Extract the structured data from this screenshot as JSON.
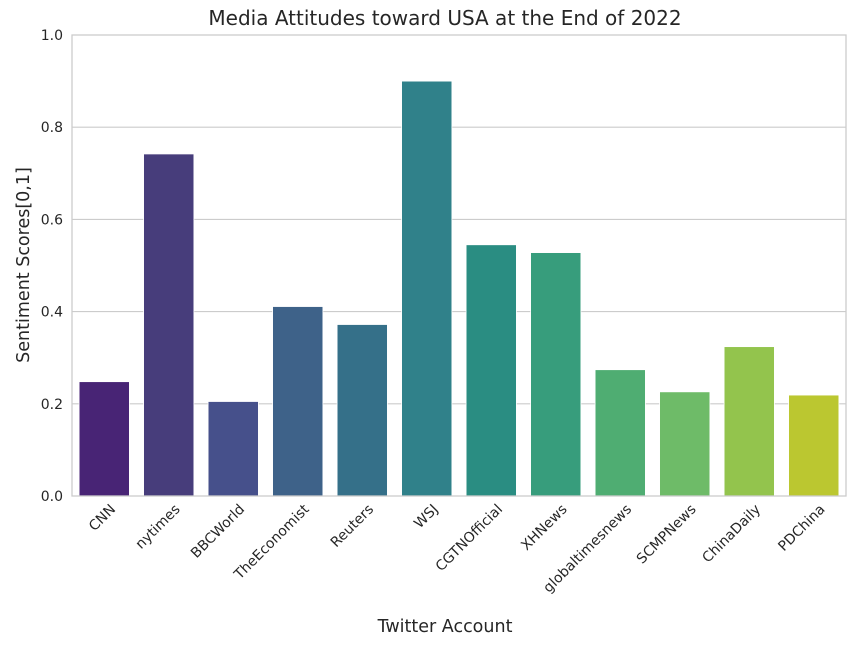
{
  "chart_data": {
    "type": "bar",
    "title": "Media Attitudes toward USA at the End of 2022",
    "xlabel": "Twitter Account",
    "ylabel": "Sentiment Scores[0,1]",
    "ylim": [
      0,
      1
    ],
    "yticks": [
      "0.0",
      "0.2",
      "0.4",
      "0.6",
      "0.8",
      "1.0"
    ],
    "grid": "horizontal",
    "categories": [
      "CNN",
      "nytimes",
      "BBCWorld",
      "TheEconomist",
      "Reuters",
      "WSJ",
      "CGTNOfficial",
      "XHNews",
      "globaltimesnews",
      "SCMPNews",
      "ChinaDaily",
      "PDChina"
    ],
    "values": [
      0.248,
      0.742,
      0.205,
      0.411,
      0.372,
      0.9,
      0.545,
      0.528,
      0.274,
      0.226,
      0.324,
      0.219
    ],
    "colors": [
      "#482475",
      "#473d7b",
      "#46508b",
      "#3e6289",
      "#357089",
      "#30818a",
      "#2a8d82",
      "#379d7c",
      "#4fad72",
      "#6ebb68",
      "#93c44d",
      "#bbc730"
    ]
  }
}
